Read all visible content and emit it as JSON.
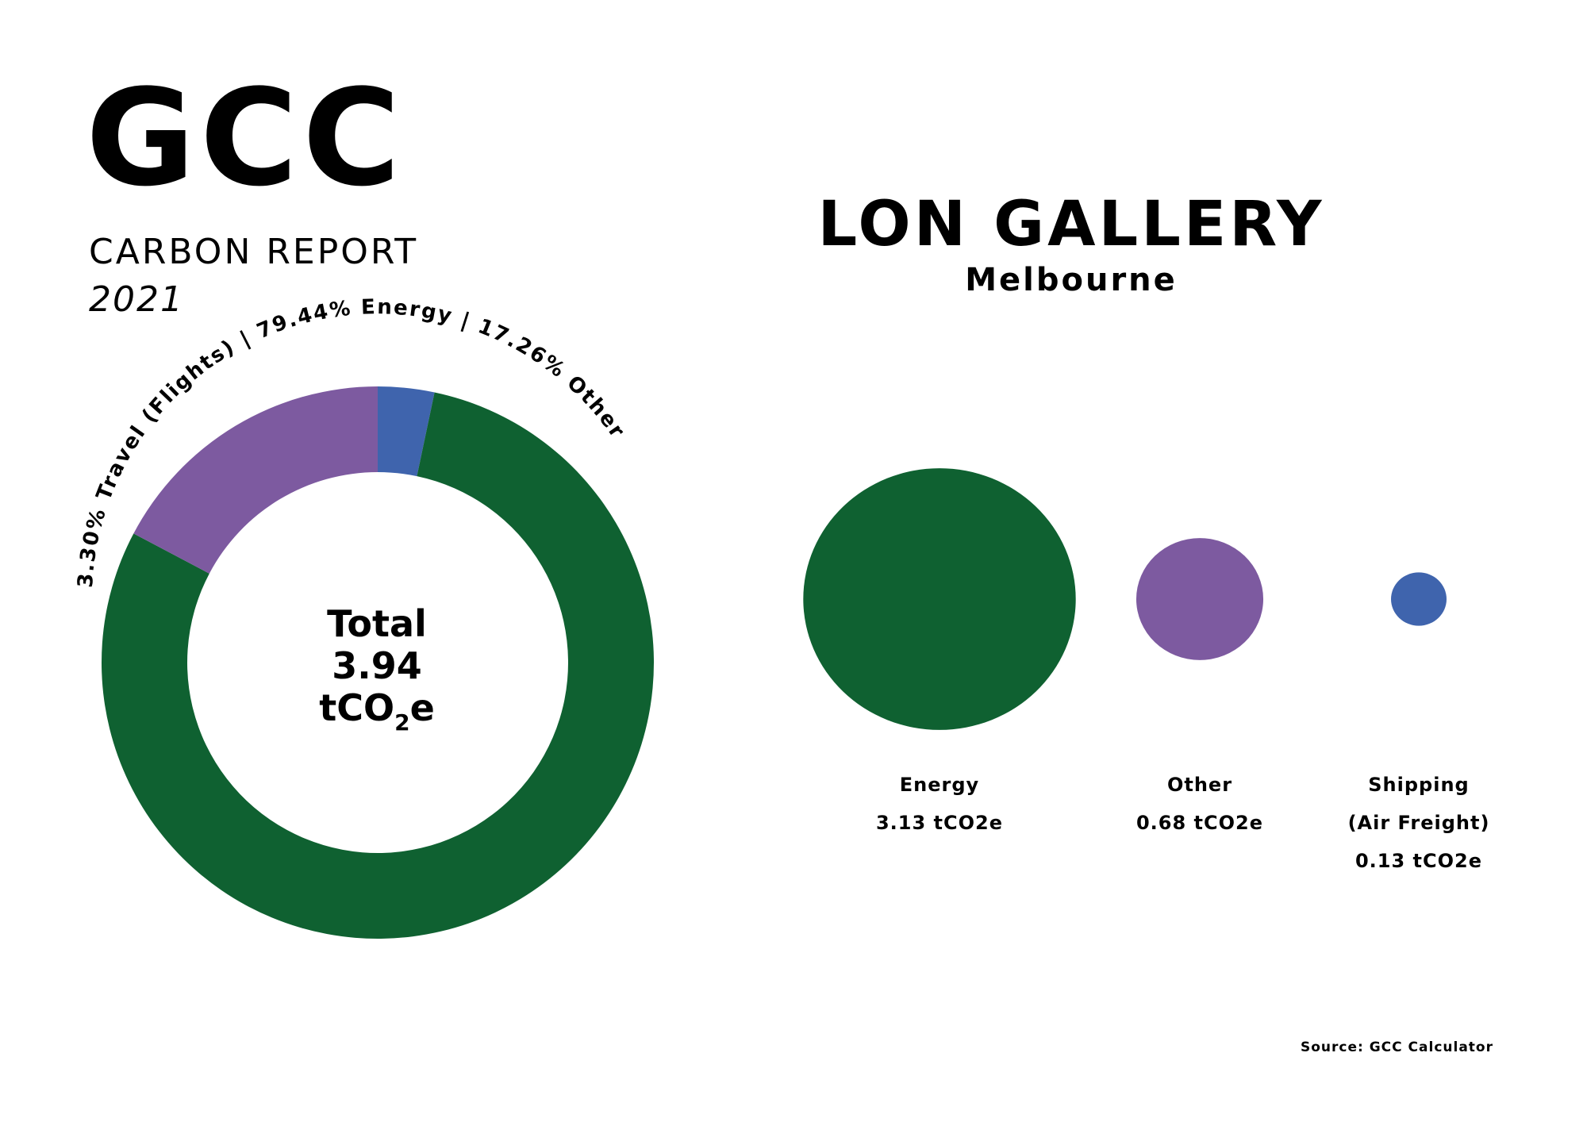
{
  "header": {
    "logo": "GCC",
    "report_title": "CARBON REPORT",
    "report_year": "2021"
  },
  "gallery": {
    "name": "LON GALLERY",
    "city": "Melbourne"
  },
  "colors": {
    "energy": "#0f6131",
    "other": "#7d5aa0",
    "travel": "#3f64ad"
  },
  "chart_data": [
    {
      "type": "pie",
      "variant": "donut",
      "ring_label": "3.30% Travel (Flights) | 79.44% Energy | 17.26% Other",
      "center": {
        "line1": "Total",
        "line2": "3.94",
        "unit_main": "tCO",
        "unit_sub": "2",
        "unit_end": "e"
      },
      "slices": [
        {
          "label": "Travel (Flights)",
          "percent": 3.3,
          "color": "#3f64ad"
        },
        {
          "label": "Energy",
          "percent": 79.44,
          "color": "#0f6131"
        },
        {
          "label": "Other",
          "percent": 17.26,
          "color": "#7d5aa0"
        }
      ]
    },
    {
      "type": "bubble",
      "series": [
        {
          "name_lines": [
            "Energy"
          ],
          "value": 3.13,
          "value_label": "3.13 tCO2e",
          "color": "#0f6131"
        },
        {
          "name_lines": [
            "Other"
          ],
          "value": 0.68,
          "value_label": "0.68 tCO2e",
          "color": "#7d5aa0"
        },
        {
          "name_lines": [
            "Shipping",
            "(Air Freight)"
          ],
          "value": 0.13,
          "value_label": "0.13 tCO2e",
          "color": "#3f64ad"
        }
      ]
    }
  ],
  "footer": {
    "source": "Source: GCC Calculator"
  }
}
